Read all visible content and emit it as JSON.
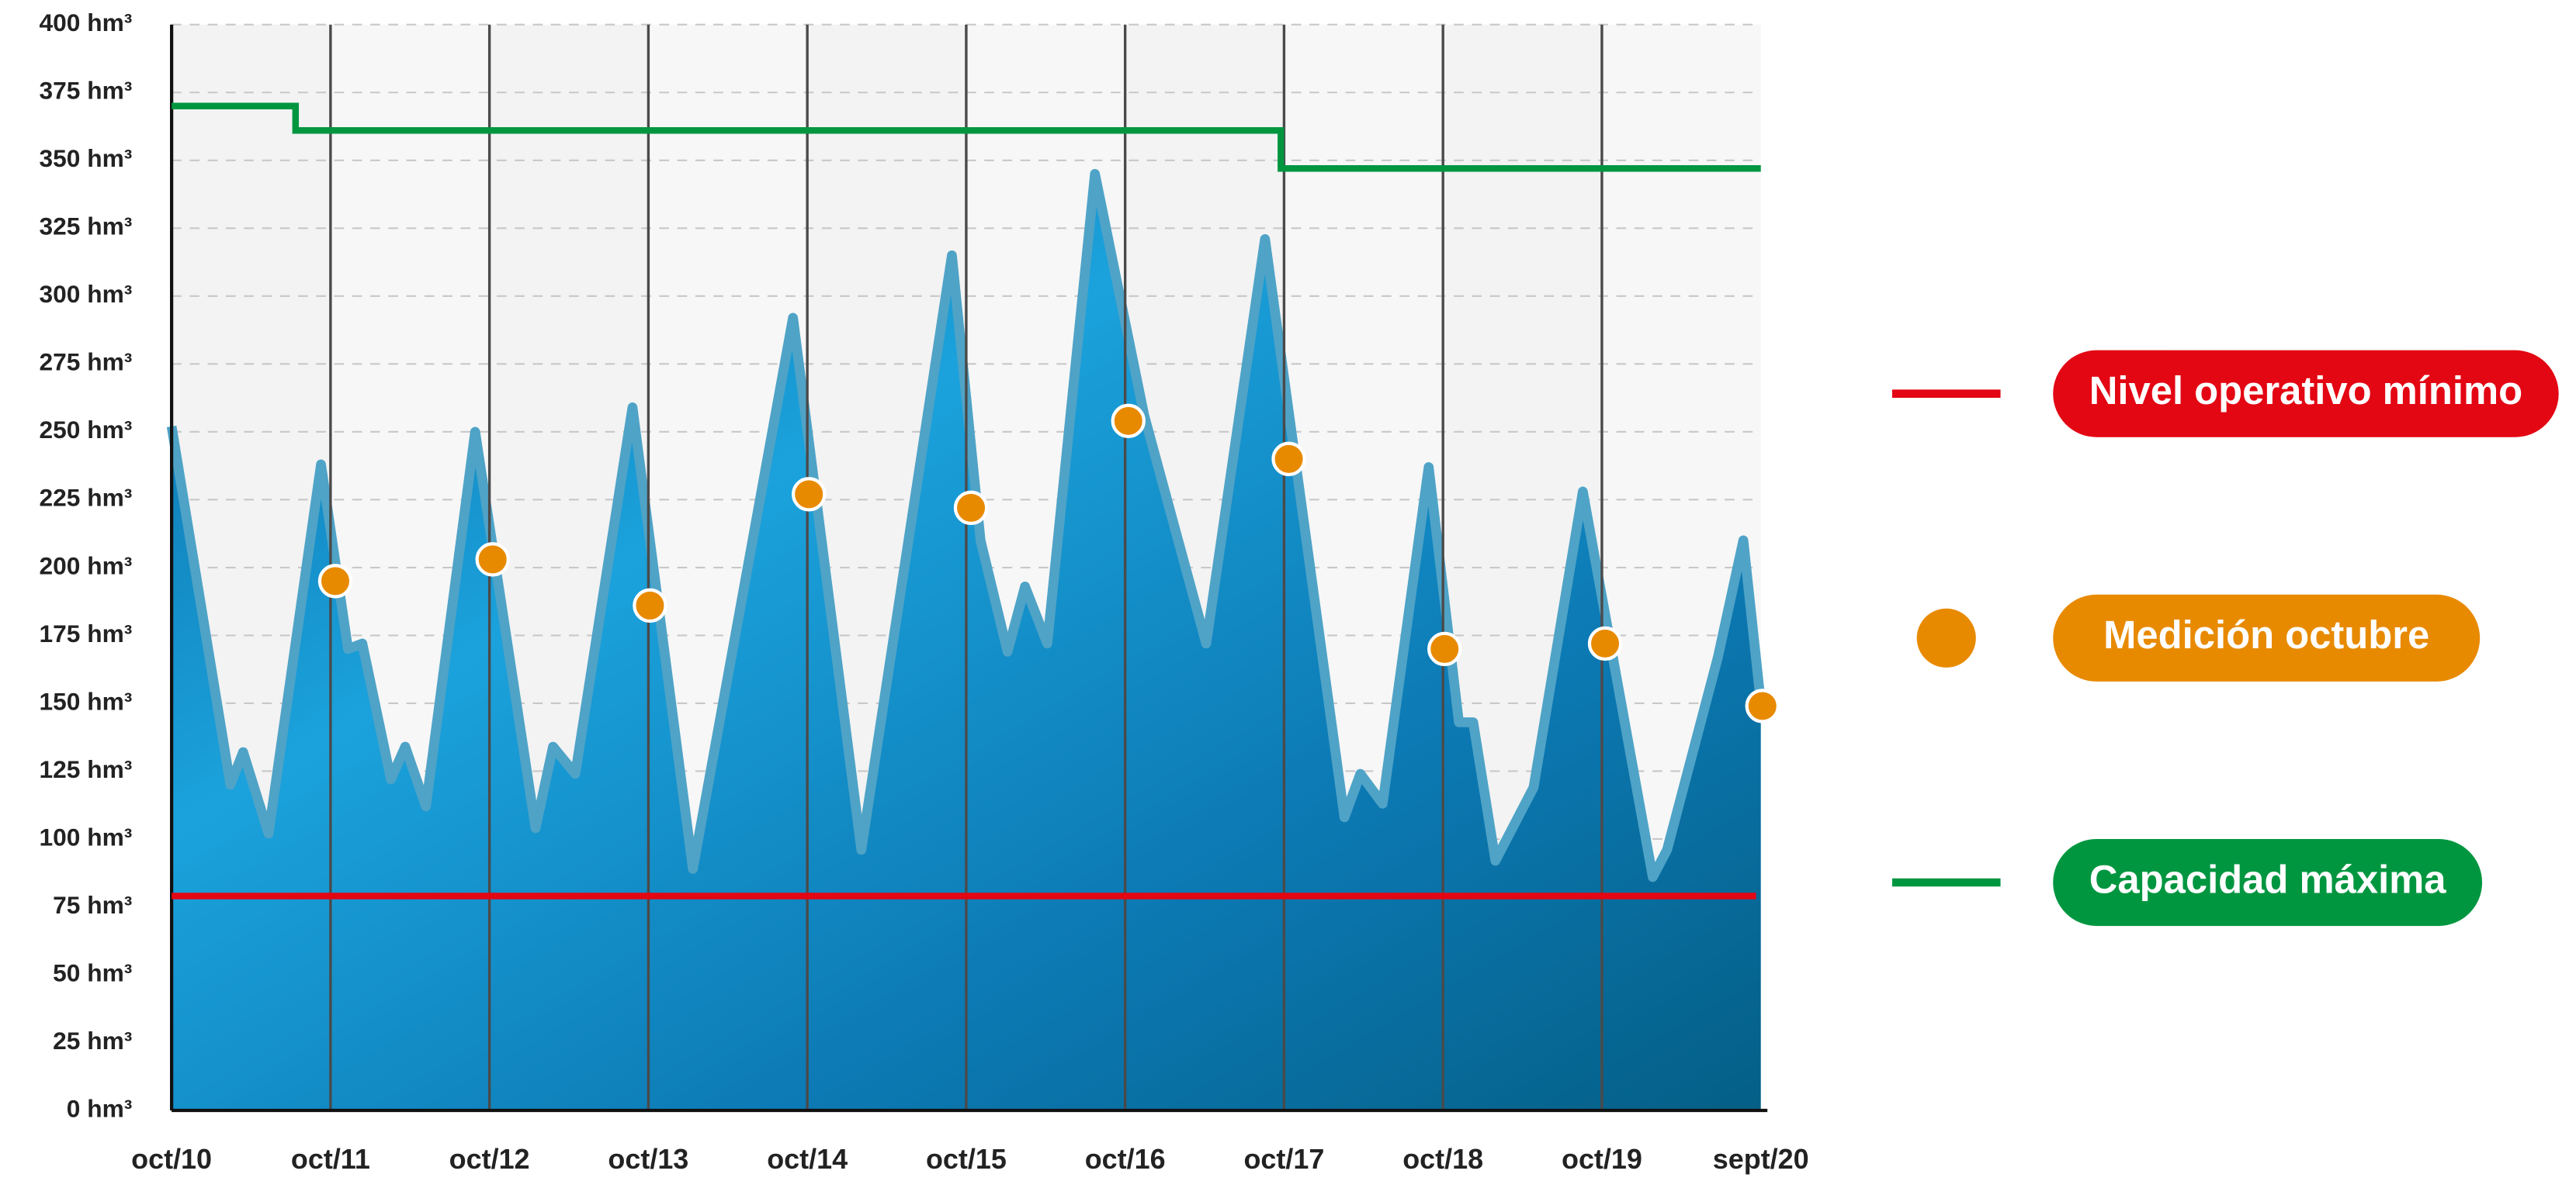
{
  "chart_data": {
    "type": "line",
    "xlim": [
      0,
      10
    ],
    "xticks": [
      {
        "value": 0,
        "label": "oct/10"
      },
      {
        "value": 1,
        "label": "oct/11"
      },
      {
        "value": 2,
        "label": "oct/12"
      },
      {
        "value": 3,
        "label": "oct/13"
      },
      {
        "value": 4,
        "label": "oct/14"
      },
      {
        "value": 5,
        "label": "oct/15"
      },
      {
        "value": 6,
        "label": "oct/16"
      },
      {
        "value": 7,
        "label": "oct/17"
      },
      {
        "value": 8,
        "label": "oct/18"
      },
      {
        "value": 9,
        "label": "oct/19"
      },
      {
        "value": 10,
        "label": "sept/20"
      }
    ],
    "ylim": [
      0,
      400
    ],
    "yticks": [
      {
        "value": 0,
        "label": "0 hm³"
      },
      {
        "value": 25,
        "label": "25 hm³"
      },
      {
        "value": 50,
        "label": "50 hm³"
      },
      {
        "value": 75,
        "label": "75 hm³"
      },
      {
        "value": 100,
        "label": "100 hm³"
      },
      {
        "value": 125,
        "label": "125 hm³"
      },
      {
        "value": 150,
        "label": "150 hm³"
      },
      {
        "value": 175,
        "label": "175 hm³"
      },
      {
        "value": 200,
        "label": "200 hm³"
      },
      {
        "value": 225,
        "label": "225 hm³"
      },
      {
        "value": 250,
        "label": "250 hm³"
      },
      {
        "value": 275,
        "label": "275 hm³"
      },
      {
        "value": 300,
        "label": "300 hm³"
      },
      {
        "value": 325,
        "label": "325 hm³"
      },
      {
        "value": 350,
        "label": "350 hm³"
      },
      {
        "value": 375,
        "label": "375 hm³"
      },
      {
        "value": 400,
        "label": "400 hm³"
      }
    ],
    "grid": true,
    "legend": "right",
    "series": [
      {
        "type": "area",
        "color": "#4fa3c7",
        "x": [
          0,
          0.37,
          0.45,
          0.61,
          0.94,
          1.11,
          1.2,
          1.38,
          1.47,
          1.6,
          1.91,
          2.29,
          2.4,
          2.54,
          2.9,
          3.28,
          3.91,
          4.34,
          4.91,
          5.09,
          5.26,
          5.37,
          5.51,
          5.81,
          6.12,
          6.51,
          6.88,
          7.38,
          7.48,
          7.62,
          7.91,
          8.1,
          8.19,
          8.33,
          8.57,
          8.88,
          9.32,
          9.41,
          9.73,
          9.89,
          10
        ],
        "values": [
          252,
          120,
          132,
          102,
          238,
          170,
          172,
          122,
          134,
          112,
          250,
          104,
          134,
          124,
          259,
          89,
          292,
          96,
          315,
          210,
          169,
          193,
          172,
          345,
          256,
          172,
          321,
          108,
          124,
          113,
          237,
          143,
          143,
          92,
          119,
          228,
          86,
          96,
          167,
          210,
          150
        ]
      },
      {
        "name": "Nivel operativo mínimo",
        "type": "line",
        "color": "#e30613",
        "x": [
          0,
          9.97
        ],
        "values": [
          79,
          79
        ]
      },
      {
        "name": "Medición octubre",
        "type": "scatter",
        "color": "#e88a00",
        "x": [
          1.03,
          2.02,
          3.01,
          4.01,
          5.03,
          6.02,
          7.03,
          8.01,
          9.02,
          10.01
        ],
        "values": [
          195,
          203,
          186,
          227,
          222,
          254,
          240,
          170,
          172,
          149
        ]
      },
      {
        "name": "Capacidad máxima",
        "type": "line",
        "color": "#009640",
        "x": [
          0,
          0.78,
          0.78,
          6.98,
          6.98,
          10
        ],
        "values": [
          370,
          370,
          361,
          361,
          347,
          347
        ]
      }
    ]
  }
}
